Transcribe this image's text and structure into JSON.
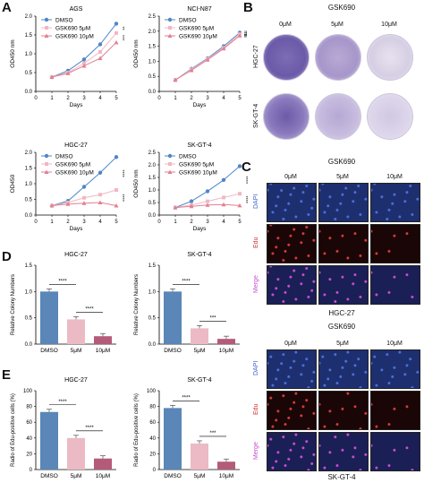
{
  "panels": {
    "A": "A",
    "B": "B",
    "C": "C",
    "D": "D",
    "E": "E"
  },
  "colors": {
    "dmso": "#4f86c6",
    "mid": "#f0b7c2",
    "high": "#e27f92",
    "bar_dmso": "#5a86b8",
    "bar_mid": "#ecbac4",
    "bar_high": "#b45b79"
  },
  "chart_data": [
    {
      "type": "line",
      "title": "AGS",
      "xlabel": "Days",
      "ylabel": "OD450 nm",
      "x": [
        1,
        2,
        3,
        4,
        5
      ],
      "xlim": [
        0,
        5
      ],
      "ylim": [
        0,
        2.0
      ],
      "yticks": [
        "0.0",
        "0.5",
        "1.0",
        "1.5",
        "2.0"
      ],
      "series": [
        {
          "name": "DMSO",
          "values": [
            0.38,
            0.55,
            0.85,
            1.25,
            1.8
          ]
        },
        {
          "name": "GSK690 5μM",
          "values": [
            0.38,
            0.5,
            0.75,
            1.05,
            1.55
          ]
        },
        {
          "name": "GSK690 10μM",
          "values": [
            0.38,
            0.48,
            0.68,
            0.88,
            1.3
          ]
        }
      ],
      "annotations": [
        "**",
        "***"
      ]
    },
    {
      "type": "line",
      "title": "NCI-N87",
      "xlabel": "Days",
      "ylabel": "OD450 nm",
      "x": [
        1,
        2,
        3,
        4,
        5
      ],
      "xlim": [
        0,
        5
      ],
      "ylim": [
        0,
        2.5
      ],
      "yticks": [
        "0.0",
        "0.5",
        "1.0",
        "1.5",
        "2.0",
        "2.5"
      ],
      "series": [
        {
          "name": "DMSO",
          "values": [
            0.38,
            0.75,
            1.1,
            1.5,
            1.95
          ]
        },
        {
          "name": "GSK690 5μM",
          "values": [
            0.38,
            0.73,
            1.08,
            1.45,
            1.9
          ]
        },
        {
          "name": "GSK690 10μM",
          "values": [
            0.38,
            0.7,
            1.05,
            1.42,
            1.85
          ]
        }
      ],
      "annotations": [
        "ns",
        "ns"
      ]
    },
    {
      "type": "line",
      "title": "HGC-27",
      "xlabel": "Days",
      "ylabel": "OD450",
      "x": [
        1,
        2,
        3,
        4,
        5
      ],
      "xlim": [
        0,
        5
      ],
      "ylim": [
        0,
        2.0
      ],
      "yticks": [
        "0.0",
        "0.5",
        "1.0",
        "1.5",
        "2.0"
      ],
      "series": [
        {
          "name": "DMSO",
          "values": [
            0.3,
            0.45,
            0.9,
            1.35,
            1.85
          ]
        },
        {
          "name": "GSK690 5μM",
          "values": [
            0.3,
            0.4,
            0.55,
            0.65,
            0.8
          ]
        },
        {
          "name": "GSK690 10μM",
          "values": [
            0.3,
            0.35,
            0.38,
            0.4,
            0.3
          ]
        }
      ],
      "annotations": [
        "****",
        "****"
      ]
    },
    {
      "type": "line",
      "title": "SK-GT-4",
      "xlabel": "Days",
      "ylabel": "OD450 nm",
      "x": [
        1,
        2,
        3,
        4,
        5
      ],
      "xlim": [
        0,
        5
      ],
      "ylim": [
        0,
        2.5
      ],
      "yticks": [
        "0.0",
        "0.5",
        "1.0",
        "1.5",
        "2.0",
        "2.5"
      ],
      "series": [
        {
          "name": "DMSO",
          "values": [
            0.3,
            0.55,
            0.95,
            1.4,
            1.95
          ]
        },
        {
          "name": "GSK690 5μM",
          "values": [
            0.3,
            0.4,
            0.55,
            0.7,
            0.85
          ]
        },
        {
          "name": "GSK690 10μM",
          "values": [
            0.3,
            0.35,
            0.4,
            0.42,
            0.38
          ]
        }
      ],
      "annotations": [
        "****",
        "****"
      ]
    },
    {
      "type": "bar",
      "title": "HGC-27",
      "ylabel": "Relative Colony Numbers",
      "categories": [
        "DMSO",
        "5μM",
        "10μM"
      ],
      "values": [
        1.0,
        0.47,
        0.15
      ],
      "ylim": [
        0,
        1.5
      ],
      "yticks": [
        "0.0",
        "0.5",
        "1.0",
        "1.5"
      ],
      "annotations": [
        "****",
        "****"
      ]
    },
    {
      "type": "bar",
      "title": "SK-GT-4",
      "ylabel": "Relative Colony Numbers",
      "categories": [
        "DMSO",
        "5μM",
        "10μM"
      ],
      "values": [
        1.0,
        0.3,
        0.1
      ],
      "ylim": [
        0,
        1.5
      ],
      "yticks": [
        "0.0",
        "0.5",
        "1.0",
        "1.5"
      ],
      "annotations": [
        "****",
        "***"
      ]
    },
    {
      "type": "bar",
      "title": "HGC-27",
      "ylabel": "Radio of Edu-positive cells (%)",
      "categories": [
        "DMSO",
        "5μM",
        "10μM"
      ],
      "values": [
        73,
        40,
        14
      ],
      "ylim": [
        0,
        100
      ],
      "yticks": [
        "0",
        "20",
        "40",
        "60",
        "80",
        "100"
      ],
      "annotations": [
        "****",
        "****"
      ]
    },
    {
      "type": "bar",
      "title": "SK-GT-4",
      "ylabel": "Radio of Edu-positive cells (%)",
      "categories": [
        "DMSO",
        "5μM",
        "10μM"
      ],
      "values": [
        78,
        33,
        10
      ],
      "ylim": [
        0,
        100
      ],
      "yticks": [
        "0",
        "20",
        "40",
        "60",
        "80",
        "100"
      ],
      "annotations": [
        "****",
        "***"
      ]
    }
  ],
  "panel_b": {
    "title": "GSK690",
    "cols": [
      "0μM",
      "5μM",
      "10μM"
    ],
    "rows": [
      "HGC-27",
      "SK-GT-4"
    ]
  },
  "panel_c": {
    "title": "GSK690",
    "cols": [
      "0μM",
      "5μM",
      "10μM"
    ],
    "rows": [
      "DAPI",
      "Edu",
      "Merge"
    ],
    "group1": "HGC-27",
    "group2": "SK-GT-4"
  }
}
